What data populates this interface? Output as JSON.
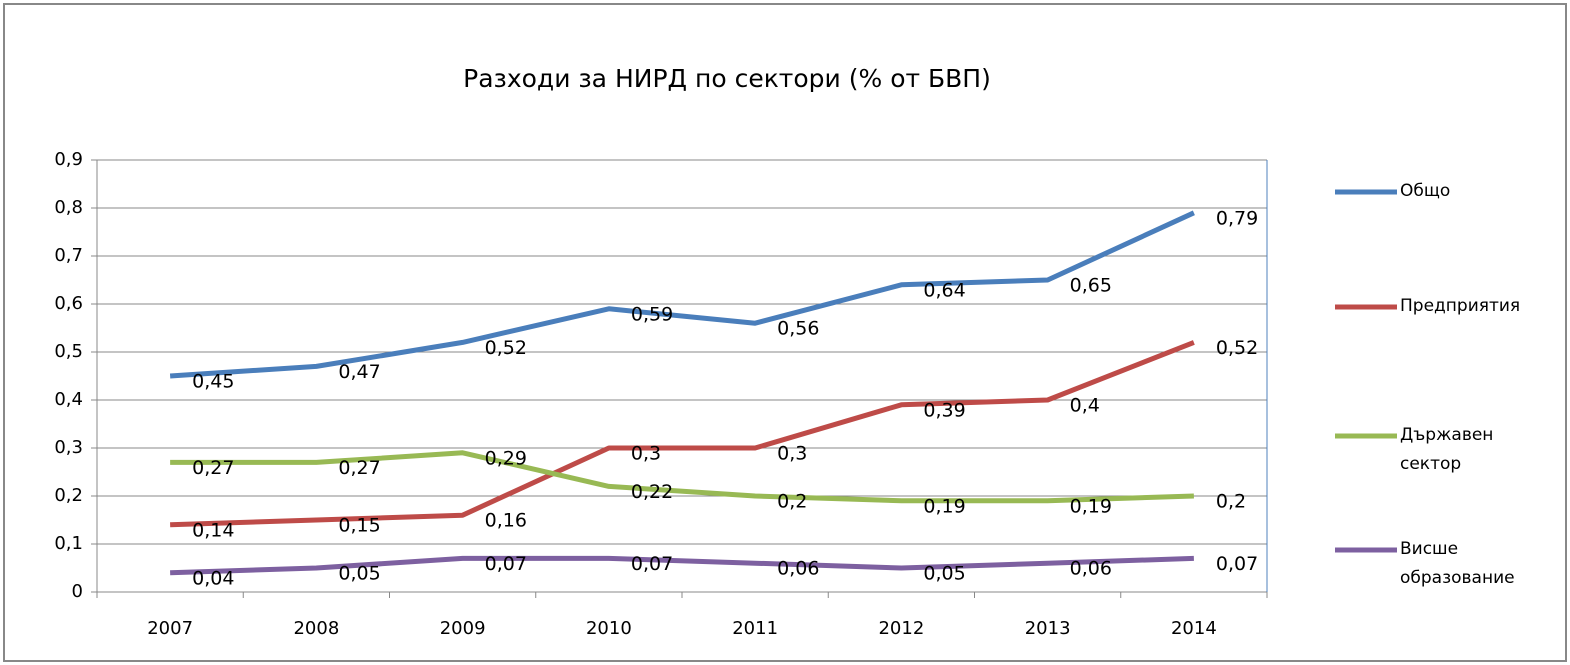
{
  "chart_data": {
    "type": "line",
    "title": "Разходи за НИРД по сектори (% от БВП)",
    "categories": [
      "2007",
      "2008",
      "2009",
      "2010",
      "2011",
      "2012",
      "2013",
      "2014"
    ],
    "series": [
      {
        "name": "Общо",
        "color": "#4a7ebb",
        "values": [
          0.45,
          0.47,
          0.52,
          0.59,
          0.56,
          0.64,
          0.65,
          0.79
        ],
        "value_labels": [
          "0,45",
          "0,47",
          "0,52",
          "0,59",
          "0,56",
          "0,64",
          "0,65",
          "0,79"
        ]
      },
      {
        "name": "Предприятия",
        "color": "#be4b48",
        "values": [
          0.14,
          0.15,
          0.16,
          0.3,
          0.3,
          0.39,
          0.4,
          0.52
        ],
        "value_labels": [
          "0,14",
          "0,15",
          "0,16",
          "0,3",
          "0,3",
          "0,39",
          "0,4",
          "0,52"
        ]
      },
      {
        "name": "Държавен сектор",
        "color": "#98b954",
        "values": [
          0.27,
          0.27,
          0.29,
          0.22,
          0.2,
          0.19,
          0.19,
          0.2
        ],
        "value_labels": [
          "0,27",
          "0,27",
          "0,29",
          "0,22",
          "0,2",
          "0,19",
          "0,19",
          "0,2"
        ]
      },
      {
        "name": "Висше образование",
        "color": "#7d60a0",
        "values": [
          0.04,
          0.05,
          0.07,
          0.07,
          0.06,
          0.05,
          0.06,
          0.07
        ],
        "value_labels": [
          "0,04",
          "0,05",
          "0,07",
          "0,07",
          "0,06",
          "0,05",
          "0,06",
          "0,07"
        ]
      }
    ],
    "ylim": [
      0,
      0.9
    ],
    "yticks": [
      0,
      {
        "value": 0.1,
        "label": "0,1"
      },
      {
        "value": 0.2,
        "label": "0,2"
      },
      {
        "value": 0.3,
        "label": "0,3"
      },
      {
        "value": 0.4,
        "label": "0,4"
      },
      {
        "value": 0.5,
        "label": "0,5"
      },
      {
        "value": 0.6,
        "label": "0,6"
      },
      {
        "value": 0.7,
        "label": "0,7"
      },
      {
        "value": 0.8,
        "label": "0,8"
      },
      {
        "value": 0.9,
        "label": "0,9"
      }
    ],
    "grid": true,
    "legend": "right"
  }
}
